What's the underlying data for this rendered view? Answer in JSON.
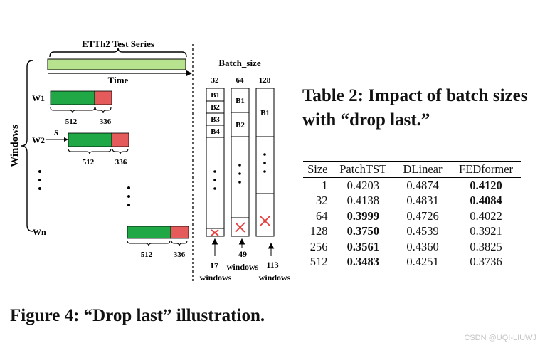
{
  "figure": {
    "series_label": "ETTh2 Test Series",
    "time_label": "Time",
    "windows_label": "Windows",
    "batch_size_label": "Batch_size",
    "window_labels": [
      "W1",
      "W2",
      "Wn"
    ],
    "stride_label": "S",
    "input_len": "512",
    "pred_len": "336",
    "batch_sizes": [
      "32",
      "64",
      "128"
    ],
    "batch_blocks": {
      "b32": [
        "B1",
        "B2",
        "B3",
        "B4"
      ],
      "b64": [
        "B1",
        "B2"
      ],
      "b128": [
        "B1"
      ]
    },
    "dropped_windows": [
      "17",
      "49",
      "113"
    ],
    "windows_word": "windows",
    "colors": {
      "series_bar": "#b7e28e",
      "input": "#1fa845",
      "pred": "#e55a5a",
      "cross": "#e53b3b"
    },
    "caption": "Figure 4: “Drop last” illustration."
  },
  "table": {
    "title": "Table 2: Impact of batch sizes with “drop last.”",
    "headers": [
      "Size",
      "PatchTST",
      "DLinear",
      "FEDformer"
    ],
    "rows": [
      [
        "1",
        "0.4203",
        "0.4874",
        "0.4120"
      ],
      [
        "32",
        "0.4138",
        "0.4831",
        "0.4084"
      ],
      [
        "64",
        "0.3999",
        "0.4726",
        "0.4022"
      ],
      [
        "128",
        "0.3750",
        "0.4539",
        "0.3921"
      ],
      [
        "256",
        "0.3561",
        "0.4360",
        "0.3825"
      ],
      [
        "512",
        "0.3483",
        "0.4251",
        "0.3736"
      ]
    ],
    "bold_cells": [
      [
        0,
        3
      ],
      [
        1,
        3
      ],
      [
        2,
        1
      ],
      [
        3,
        1
      ],
      [
        4,
        1
      ],
      [
        5,
        1
      ]
    ]
  },
  "watermark": "CSDN @UQI-LIUWJ"
}
